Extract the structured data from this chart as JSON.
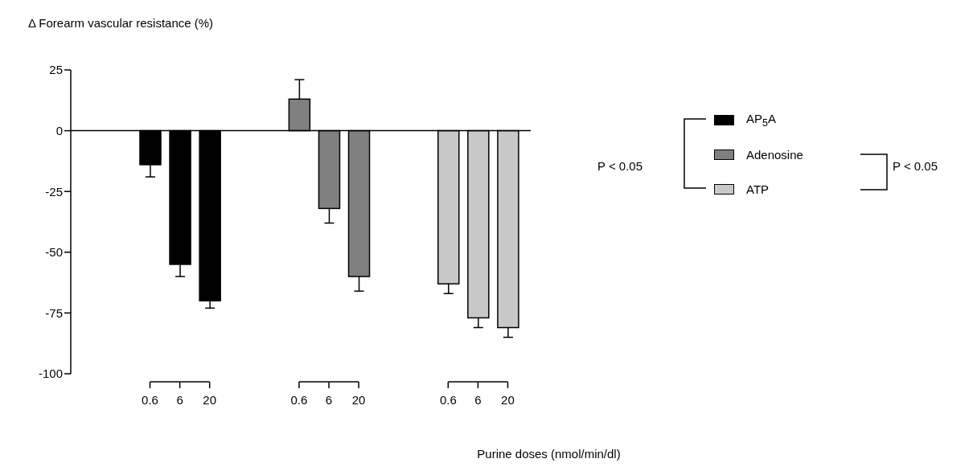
{
  "chart_data": {
    "type": "bar",
    "ylabel": "Δ Forearm vascular resistance (%)",
    "xlabel": "Purine doses (nmol/min/dl)",
    "categories": [
      "0.6",
      "6",
      "20",
      null,
      null,
      "0.6",
      "6",
      "20",
      null,
      null,
      "0.6",
      "6",
      "20"
    ],
    "series": [
      {
        "name": "AP$_{5}$A",
        "color": "#000000",
        "values": [
          -14,
          -55,
          -70,
          null,
          null,
          null,
          null,
          null,
          null,
          null,
          null,
          null,
          null
        ],
        "errors": [
          5,
          5,
          3,
          null,
          null,
          null,
          null,
          null,
          null,
          null,
          null,
          null,
          null
        ]
      },
      {
        "name": "Adenosine",
        "color": "#808080",
        "values": [
          null,
          null,
          null,
          null,
          null,
          13,
          -32,
          -60,
          null,
          null,
          null,
          null,
          null
        ],
        "errors": [
          null,
          null,
          null,
          null,
          null,
          8,
          6,
          6,
          null,
          null,
          null,
          null,
          null
        ]
      },
      {
        "name": "ATP",
        "color": "#c8c8c8",
        "values": [
          null,
          null,
          null,
          null,
          null,
          null,
          null,
          null,
          null,
          null,
          -63,
          -77,
          -81
        ],
        "errors": [
          null,
          null,
          null,
          null,
          null,
          null,
          null,
          null,
          null,
          null,
          4,
          4,
          4
        ]
      }
    ],
    "ylim": [
      -100,
      25
    ],
    "yticks": [
      25,
      0,
      -25,
      -50,
      -75,
      -100
    ],
    "grid": false,
    "legend": "right",
    "ref_lines": [
      {
        "axis": "y",
        "value": 0
      }
    ],
    "annotations": [
      "P < 0.05",
      "P < 0.05"
    ]
  }
}
